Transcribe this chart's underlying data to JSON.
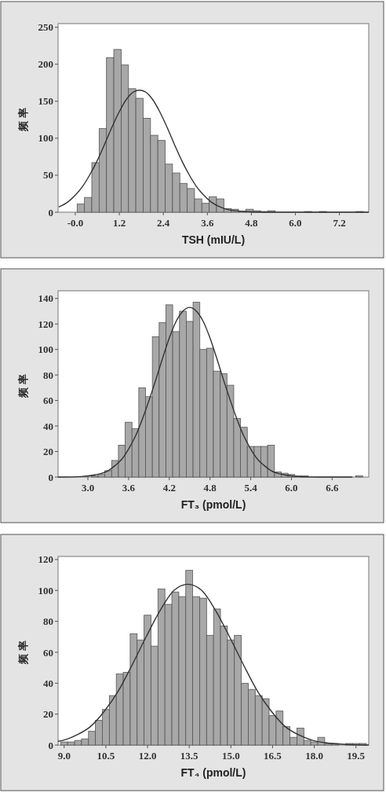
{
  "chart_data": [
    {
      "type": "histogram",
      "xlabel": "TSH (mIU/L)",
      "ylabel": "频率",
      "color": "#a8a8a8",
      "grid": false,
      "bins": [
        0.05,
        0.25,
        0.45,
        0.65,
        0.85,
        1.05,
        1.25,
        1.45,
        1.65,
        1.85,
        2.05,
        2.25,
        2.45,
        2.65,
        2.85,
        3.05,
        3.25,
        3.45,
        3.65,
        3.85,
        4.05,
        4.25,
        4.45,
        4.65,
        4.85,
        5.05,
        5.25,
        5.45,
        5.65,
        5.85,
        6.05,
        6.25,
        6.45,
        6.65,
        6.85,
        7.05,
        7.25,
        7.45,
        7.65,
        7.85
      ],
      "values": [
        11,
        20,
        67,
        113,
        209,
        220,
        199,
        167,
        154,
        127,
        104,
        97,
        65,
        53,
        39,
        32,
        18,
        12,
        21,
        18,
        5,
        4,
        1,
        4,
        2,
        1,
        2,
        0,
        0,
        0,
        0,
        1,
        0,
        1,
        0,
        0,
        0,
        0,
        1
      ],
      "series": [
        {
          "type": "line",
          "color": "#333333",
          "x": [
            -0.45,
            -0.2,
            0,
            0.2,
            0.4,
            0.6,
            0.8,
            1,
            1.2,
            1.4,
            1.6,
            1.75,
            1.9,
            2.1,
            2.3,
            2.5,
            2.7,
            2.9,
            3.1,
            3.3,
            3.5,
            3.7,
            3.95,
            4.2,
            4.6,
            5.2,
            6,
            8
          ],
          "values": [
            7,
            14,
            23,
            35,
            51,
            70,
            92,
            115,
            136,
            153,
            163,
            165,
            163,
            153,
            136,
            115,
            92,
            70,
            51,
            35,
            23,
            14,
            7,
            3,
            1,
            0,
            0,
            0
          ]
        }
      ],
      "xlim": [
        -0.47,
        8
      ],
      "xticks": [
        {
          "value": 0,
          "label": "-0.0"
        },
        1.2,
        2.4,
        3.6,
        4.8,
        {
          "value": 6,
          "label": "6.0"
        },
        7.2
      ],
      "ylim": [
        0,
        255
      ],
      "yticks": [
        0,
        50,
        100,
        150,
        200,
        250
      ]
    },
    {
      "type": "histogram",
      "xlabel": "FT₃ (pmol/L)",
      "ylabel": "频率",
      "color": "#a8a8a8",
      "grid": false,
      "bins": [
        3.05,
        3.15,
        3.25,
        3.35,
        3.45,
        3.55,
        3.65,
        3.75,
        3.85,
        3.95,
        4.05,
        4.15,
        4.25,
        4.35,
        4.45,
        4.55,
        4.65,
        4.75,
        4.85,
        4.95,
        5.05,
        5.15,
        5.25,
        5.35,
        5.45,
        5.55,
        5.65,
        5.75,
        5.85,
        5.95,
        6.05,
        6.15,
        6.25,
        6.35,
        6.45,
        6.55,
        6.65,
        6.75,
        6.85,
        6.95,
        7.05
      ],
      "values": [
        1,
        2,
        5,
        13,
        25,
        43,
        38,
        70,
        63,
        110,
        121,
        135,
        114,
        130,
        122,
        137,
        100,
        101,
        83,
        81,
        72,
        46,
        39,
        24,
        24,
        24,
        25,
        4,
        3,
        2,
        1,
        1,
        0,
        0,
        0,
        0,
        0,
        0,
        0,
        1
      ],
      "series": [
        {
          "type": "line",
          "color": "#333333",
          "x": [
            2.56,
            2.9,
            3.1,
            3.3,
            3.4,
            3.5,
            3.6,
            3.7,
            3.8,
            3.9,
            4,
            4.1,
            4.2,
            4.3,
            4.4,
            4.5,
            4.6,
            4.7,
            4.8,
            4.9,
            5,
            5.1,
            5.2,
            5.3,
            5.4,
            5.5,
            5.6,
            5.7,
            5.9,
            6.1,
            6.4,
            6.9
          ],
          "values": [
            0,
            0.4,
            1.7,
            5,
            9,
            14,
            22,
            32,
            45,
            60,
            76,
            93,
            109,
            122,
            130,
            133,
            130,
            122,
            109,
            93,
            76,
            60,
            45,
            32,
            22,
            14,
            9,
            5,
            1.7,
            0.4,
            0,
            0
          ]
        }
      ],
      "xlim": [
        2.56,
        7.14
      ],
      "xticks": [
        {
          "value": 3,
          "label": "3.0"
        },
        3.6,
        4.2,
        4.8,
        5.4,
        {
          "value": 6,
          "label": "6.0"
        },
        6.6
      ],
      "ylim": [
        0,
        146
      ],
      "yticks": [
        0,
        20,
        40,
        60,
        80,
        100,
        120,
        140
      ]
    },
    {
      "type": "histogram",
      "xlabel": "FT₄ (pmol/L)",
      "ylabel": "频率",
      "color": "#a8a8a8",
      "grid": false,
      "bins": [
        8.875,
        9.125,
        9.375,
        9.625,
        9.875,
        10.125,
        10.375,
        10.625,
        10.875,
        11.125,
        11.375,
        11.625,
        11.875,
        12.125,
        12.375,
        12.625,
        12.875,
        13.125,
        13.375,
        13.625,
        13.875,
        14.125,
        14.375,
        14.625,
        14.875,
        15.125,
        15.375,
        15.625,
        15.875,
        16.125,
        16.375,
        16.625,
        16.875,
        17.125,
        17.375,
        17.625,
        17.875,
        18.125,
        18.375,
        18.625,
        18.875,
        19.125,
        19.375,
        19.625,
        19.875
      ],
      "values": [
        2,
        2,
        3,
        4,
        9,
        16,
        23,
        32,
        46,
        47,
        72,
        68,
        84,
        64,
        101,
        91,
        99,
        96,
        113,
        96,
        95,
        71,
        88,
        77,
        68,
        71,
        40,
        36,
        32,
        30,
        19,
        22,
        12,
        5,
        11,
        3,
        2,
        5,
        1,
        1,
        0,
        1,
        1,
        1
      ],
      "series": [
        {
          "type": "line",
          "color": "#333333",
          "x": [
            8.78,
            8.95,
            9.45,
            9.95,
            10.45,
            10.95,
            11.45,
            11.95,
            12.45,
            12.95,
            13.45,
            13.95,
            14.45,
            14.95,
            15.45,
            15.95,
            16.45,
            16.95,
            17.45,
            17.95,
            18.45,
            18.95,
            19.45,
            19.96
          ],
          "values": [
            2.4,
            3,
            6.5,
            12,
            22,
            35,
            52,
            70,
            87,
            100,
            104,
            100,
            87,
            70,
            52,
            35,
            22,
            12,
            6.5,
            3,
            1.4,
            0.6,
            0.2,
            0
          ]
        }
      ],
      "xlim": [
        8.78,
        19.96
      ],
      "xticks": [
        {
          "value": 9,
          "label": "9.0"
        },
        10.5,
        {
          "value": 12,
          "label": "12.0"
        },
        13.5,
        {
          "value": 15,
          "label": "15.0"
        },
        16.5,
        {
          "value": 18,
          "label": "18.0"
        },
        19.5
      ],
      "ylim": [
        0,
        122
      ],
      "yticks": [
        0,
        20,
        40,
        60,
        80,
        100,
        120
      ]
    }
  ]
}
